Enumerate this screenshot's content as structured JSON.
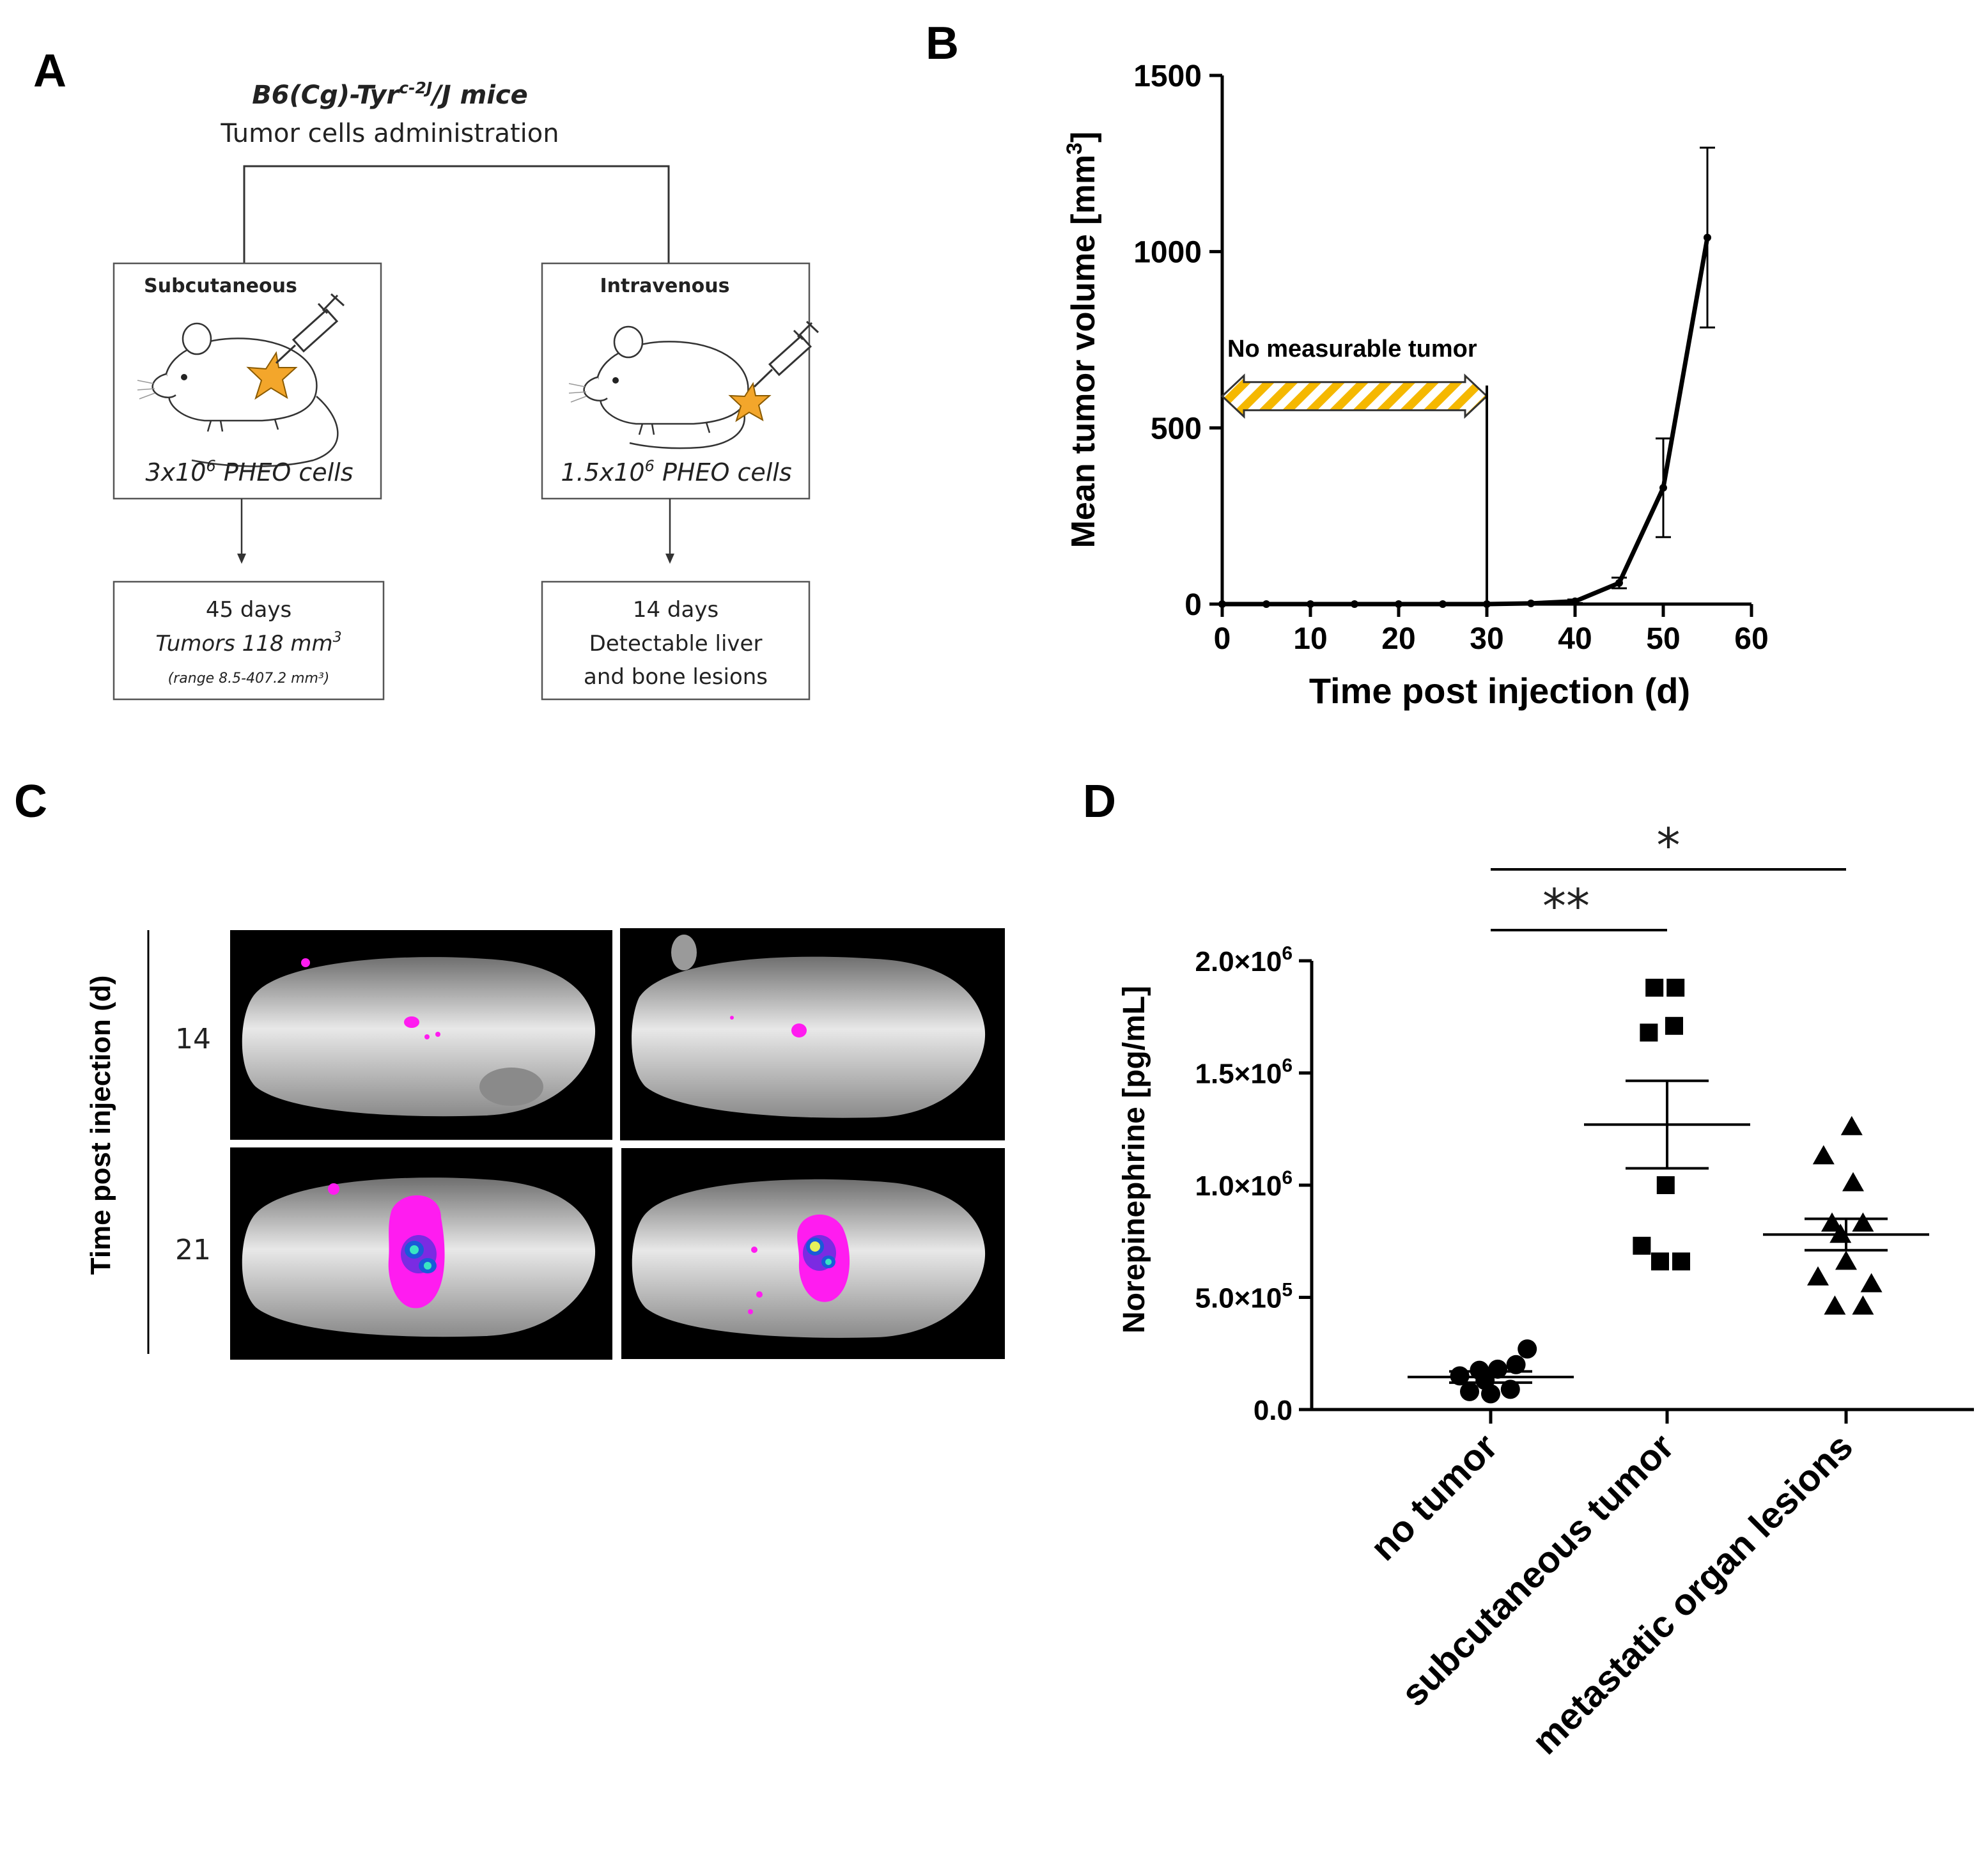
{
  "panels": {
    "a": "A",
    "b": "B",
    "c": "C",
    "d": "D"
  },
  "diagram": {
    "strain_main": "B6(Cg)-Tyr",
    "strain_sup": "c-2J",
    "strain_end": "/J mice",
    "subtitle": "Tumor cells administration",
    "left": {
      "route": "Subcutaneous",
      "dose_main": "3x10",
      "dose_sup": "6",
      "dose_end": " PHEO cells",
      "outcome_line1": "45 days",
      "outcome_line2_main": "Tumors 118 mm",
      "outcome_line2_sup": "3",
      "outcome_line3": "(range 8.5-407.2 mm³)"
    },
    "right": {
      "route": "Intravenous",
      "dose_main": "1.5x10",
      "dose_sup": "6",
      "dose_end": " PHEO cells",
      "outcome_line1": "14 days",
      "outcome_line2": "Detectable liver",
      "outcome_line3": "and bone lesions"
    }
  },
  "imaging": {
    "ylabel": "Time post injection (d)",
    "rows": [
      "14",
      "21"
    ]
  },
  "chart_data": [
    {
      "type": "line",
      "xlabel": "Time post injection (d)",
      "ylabel_main": "Mean tumor  volume [mm",
      "ylabel_sup": "3",
      "ylabel_end": "]",
      "xlim": [
        0,
        60
      ],
      "ylim": [
        0,
        1500
      ],
      "xticks": [
        "0",
        "10",
        "20",
        "30",
        "40",
        "50",
        "60"
      ],
      "yticks": [
        "0",
        "500",
        "1000",
        "1500"
      ],
      "annotation": "No measurable tumor",
      "annotation_range": [
        0,
        30
      ],
      "series": [
        {
          "x": [
            0,
            5,
            10,
            15,
            20,
            25,
            30,
            35,
            40,
            45,
            50,
            55
          ],
          "y": [
            0,
            0,
            0,
            0,
            0,
            0,
            0,
            2,
            8,
            60,
            330,
            1040
          ],
          "err": [
            0,
            0,
            0,
            0,
            0,
            0,
            0,
            2,
            5,
            15,
            140,
            255
          ]
        }
      ]
    },
    {
      "type": "scatter",
      "ylabel": "Norepinephrine [pg/mL]",
      "ylim": [
        0,
        2000000
      ],
      "yticks": [
        {
          "value": 0,
          "main": "0.0",
          "sup": ""
        },
        {
          "value": 500000,
          "main": "5.0×10",
          "sup": "5"
        },
        {
          "value": 1000000,
          "main": "1.0×10",
          "sup": "6"
        },
        {
          "value": 1500000,
          "main": "1.5×10",
          "sup": "6"
        },
        {
          "value": 2000000,
          "main": "2.0×10",
          "sup": "6"
        }
      ],
      "categories": [
        "no tumor",
        "subcutaneous tumor",
        "metastatic organ lesions"
      ],
      "groups": [
        {
          "marker": "circle",
          "mean": 145000,
          "sem": 25000,
          "points": [
            [
              -0.22,
              150000
            ],
            [
              -0.08,
              175000
            ],
            [
              0.05,
              180000
            ],
            [
              0.18,
              200000
            ],
            [
              0.26,
              270000
            ],
            [
              -0.15,
              80000
            ],
            [
              0.0,
              70000
            ],
            [
              0.14,
              90000
            ],
            [
              -0.04,
              130000
            ]
          ]
        },
        {
          "marker": "square",
          "mean": 1270000,
          "sem": 195000,
          "points": [
            [
              -0.09,
              1880000
            ],
            [
              0.06,
              1880000
            ],
            [
              -0.13,
              1680000
            ],
            [
              0.05,
              1710000
            ],
            [
              -0.01,
              1000000
            ],
            [
              -0.18,
              730000
            ],
            [
              -0.05,
              660000
            ],
            [
              0.1,
              660000
            ]
          ]
        },
        {
          "marker": "triangle",
          "mean": 780000,
          "sem": 70000,
          "points": [
            [
              0.04,
              1260000
            ],
            [
              -0.16,
              1130000
            ],
            [
              0.05,
              1010000
            ],
            [
              -0.1,
              830000
            ],
            [
              0.12,
              830000
            ],
            [
              -0.04,
              780000
            ],
            [
              -0.2,
              590000
            ],
            [
              0.18,
              560000
            ],
            [
              0.0,
              660000
            ],
            [
              -0.08,
              460000
            ],
            [
              0.12,
              460000
            ]
          ]
        }
      ],
      "significance": [
        {
          "from": 0,
          "to": 1,
          "label": "**"
        },
        {
          "from": 0,
          "to": 2,
          "label": "*"
        }
      ]
    }
  ]
}
